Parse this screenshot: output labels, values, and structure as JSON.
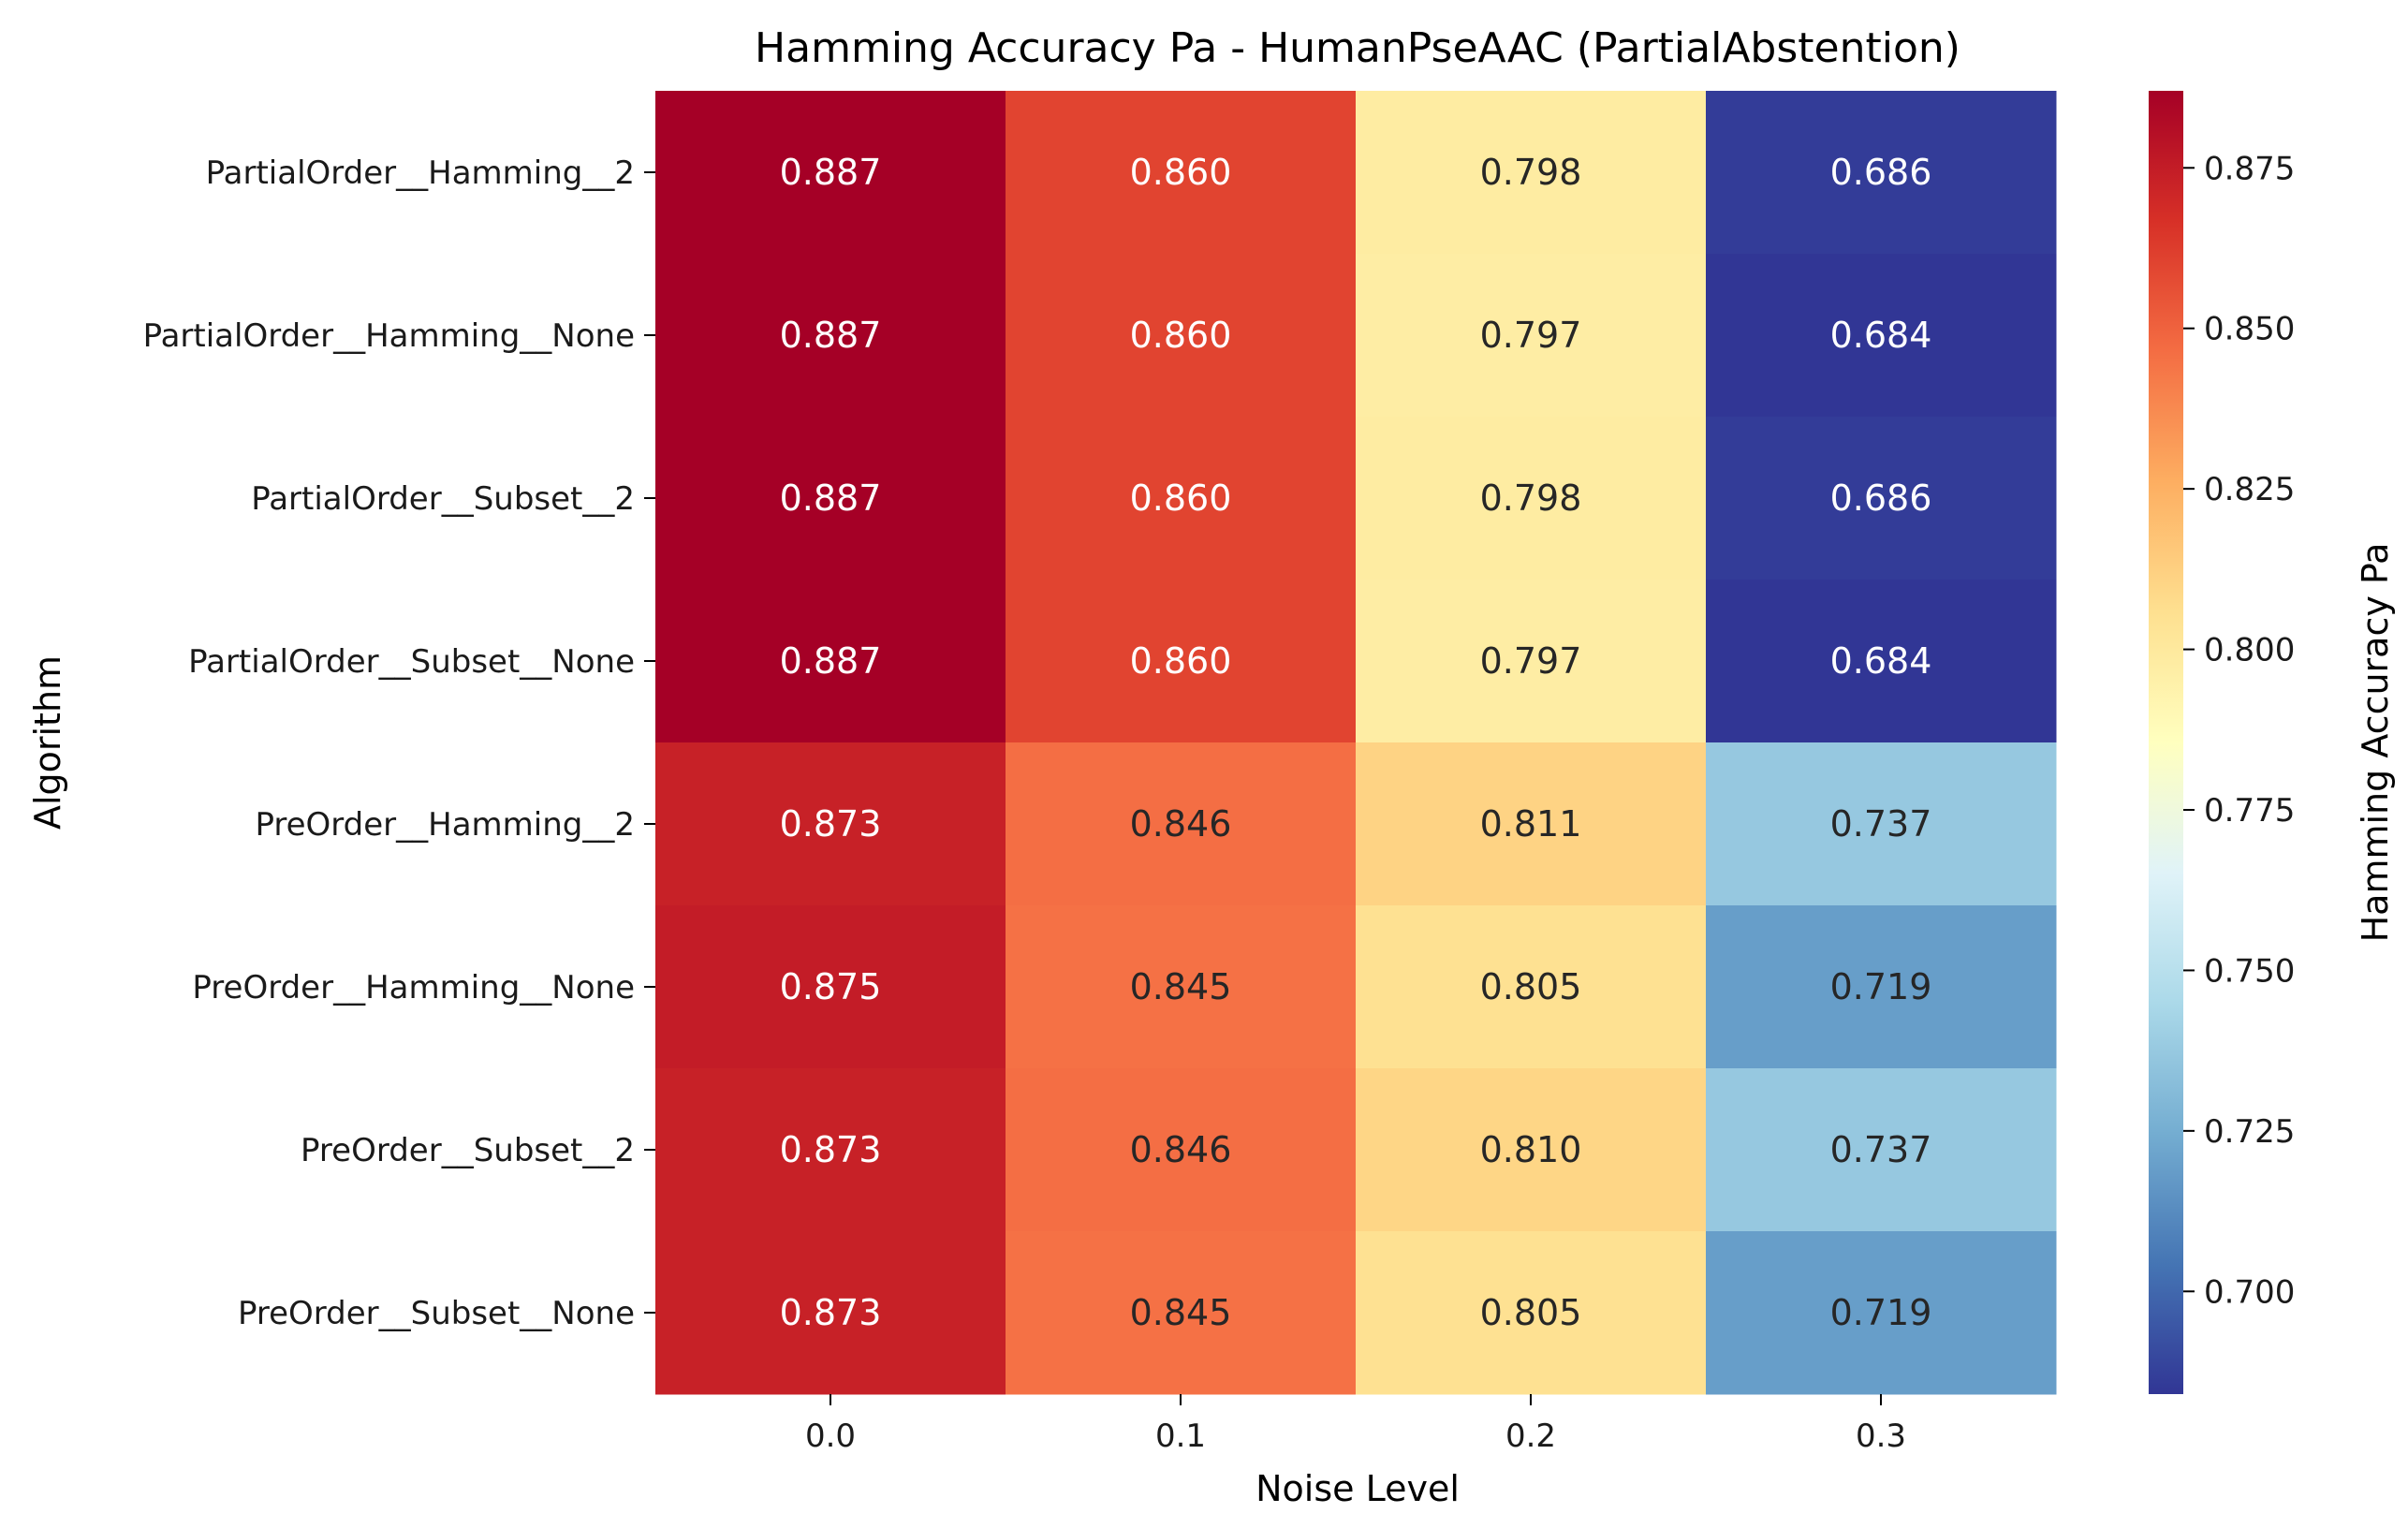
{
  "chart_data": {
    "type": "heatmap",
    "title": "Hamming Accuracy Pa - HumanPseAAC (PartialAbstention)",
    "xlabel": "Noise Level",
    "ylabel": "Algorithm",
    "colorbar_label": "Hamming Accuracy Pa",
    "colormap": "RdYlBu_r",
    "x_categories": [
      "0.0",
      "0.1",
      "0.2",
      "0.3"
    ],
    "y_categories": [
      "PartialOrder__Hamming__2",
      "PartialOrder__Hamming__None",
      "PartialOrder__Subset__2",
      "PartialOrder__Subset__None",
      "PreOrder__Hamming__2",
      "PreOrder__Hamming__None",
      "PreOrder__Subset__2",
      "PreOrder__Subset__None"
    ],
    "values": [
      [
        0.887,
        0.86,
        0.798,
        0.686
      ],
      [
        0.887,
        0.86,
        0.797,
        0.684
      ],
      [
        0.887,
        0.86,
        0.798,
        0.686
      ],
      [
        0.887,
        0.86,
        0.797,
        0.684
      ],
      [
        0.873,
        0.846,
        0.811,
        0.737
      ],
      [
        0.875,
        0.845,
        0.805,
        0.719
      ],
      [
        0.873,
        0.846,
        0.81,
        0.737
      ],
      [
        0.873,
        0.845,
        0.805,
        0.719
      ]
    ],
    "value_format": "0.000",
    "color_range": [
      0.684,
      0.887
    ],
    "colorbar_ticks": [
      "0.700",
      "0.725",
      "0.750",
      "0.775",
      "0.800",
      "0.825",
      "0.850",
      "0.875"
    ]
  }
}
